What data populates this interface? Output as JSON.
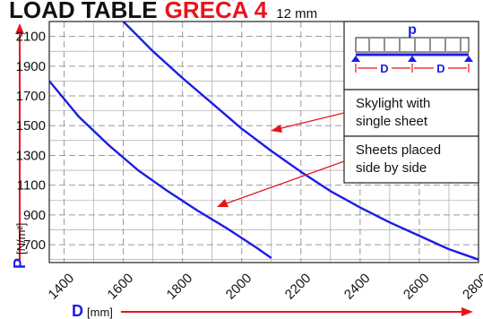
{
  "chart_data": {
    "type": "line",
    "title": {
      "part1": "LOAD TABLE",
      "part2": "GRECA 4",
      "part3": "12 mm"
    },
    "xlabel": {
      "letter": "D",
      "unit": "[mm]"
    },
    "ylabel": {
      "letter": "P",
      "unit": "[N/m²]"
    },
    "xlim": [
      1350,
      2800
    ],
    "ylim": [
      580,
      2200
    ],
    "xticks": [
      1400,
      1600,
      1800,
      2000,
      2200,
      2400,
      2600,
      2800
    ],
    "yticks": [
      700,
      900,
      1100,
      1300,
      1500,
      1700,
      1900,
      2100
    ],
    "grid": true,
    "series": [
      {
        "x": [
          1350,
          1450,
          1550,
          1650,
          1750,
          1850,
          1950,
          2050,
          2100
        ],
        "y": [
          1800,
          1560,
          1370,
          1200,
          1060,
          930,
          810,
          680,
          610
        ]
      },
      {
        "x": [
          1600,
          1700,
          1800,
          1900,
          2000,
          2100,
          2200,
          2300,
          2400,
          2500,
          2600,
          2700,
          2800
        ],
        "y": [
          2200,
          2000,
          1820,
          1650,
          1480,
          1330,
          1190,
          1060,
          950,
          850,
          760,
          670,
          600
        ]
      }
    ],
    "annotations": [
      {
        "line1": "Skylight with",
        "line2": "single sheet",
        "points_to_series": 1
      },
      {
        "line1": "Sheets placed",
        "line2": "side by side",
        "points_to_series": 0
      }
    ],
    "diagram": {
      "load_label": "p",
      "span_label": "D"
    },
    "colors": {
      "curve": "#1c1ce6",
      "accent": "#e8141c",
      "text": "#111111",
      "grid": "#9a9a9a"
    }
  }
}
